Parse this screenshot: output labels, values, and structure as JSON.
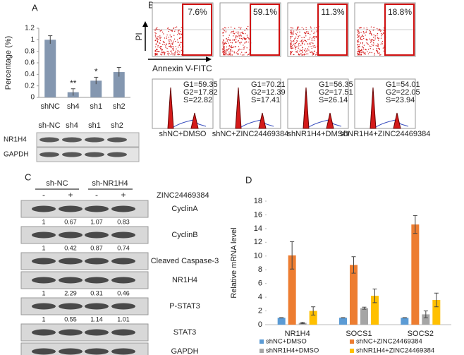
{
  "panel_labels": [
    "A",
    "B",
    "C",
    "D"
  ],
  "chart_data": [
    {
      "type": "bar",
      "ylabel": "Percentage (%)",
      "categories": [
        "shNC",
        "sh4",
        "sh1",
        "sh2"
      ],
      "values": [
        1.0,
        0.09,
        0.29,
        0.44
      ],
      "errors": [
        0.07,
        0.06,
        0.06,
        0.08
      ],
      "significance": [
        null,
        "**",
        "*",
        null
      ],
      "color": "#8497b0",
      "ylim": [
        0,
        1.2
      ],
      "yticks": [
        0,
        0.2,
        0.4,
        0.6,
        0.8,
        1,
        1.2
      ]
    },
    {
      "type": "grouped_bar",
      "ylabel": "Relative mRNA level",
      "categories": [
        "NR1H4",
        "SOCS1",
        "SOCS2"
      ],
      "series": [
        {
          "name": "shNC+DMSO",
          "color": "#5b9bd5",
          "values": [
            1,
            1,
            1
          ],
          "errors": [
            0.02,
            0.02,
            0.02
          ]
        },
        {
          "name": "shNC+ZINC24469384",
          "color": "#ed7d31",
          "values": [
            10.1,
            8.7,
            14.6
          ],
          "errors": [
            2.0,
            1.2,
            1.3
          ]
        },
        {
          "name": "shNR1H4+DMSO",
          "color": "#a5a5a5",
          "values": [
            0.25,
            2.4,
            1.5
          ],
          "errors": [
            0.1,
            0.15,
            0.5
          ]
        },
        {
          "name": "shNR1H4+ZINC24469384",
          "color": "#ffc000",
          "values": [
            2.0,
            4.2,
            3.6
          ],
          "errors": [
            0.6,
            1.0,
            1.0
          ]
        }
      ],
      "ylim": [
        0,
        18
      ],
      "yticks": [
        0,
        2,
        4,
        6,
        8,
        10,
        12,
        14,
        16,
        18
      ],
      "legend": "bottom"
    }
  ],
  "blot_a": {
    "lanes": [
      "sh-NC",
      "sh4",
      "sh1",
      "sh2"
    ],
    "rows": [
      "NR1H4",
      "GAPDH"
    ]
  },
  "flow": {
    "y_label": "PI",
    "x_label": "Annexin V-FITC",
    "percentages": [
      "7.6%",
      "59.1%",
      "11.3%",
      "18.8%"
    ],
    "cell_cycle": [
      [
        "G1=59.35",
        "G2=17.82",
        "S=22.82"
      ],
      [
        "G1=70.21",
        "G2=12.39",
        "S=17.41"
      ],
      [
        "G1=56.35",
        "G2=17.51",
        "S=26.14"
      ],
      [
        "G1=54.01",
        "G2=22.05",
        "S=23.94"
      ]
    ],
    "conditions": [
      "shNC+DMSO",
      "shNC+ZINC24469384",
      "shNR1H4+DMSO",
      "shNR1H4+ZINC24469384"
    ]
  },
  "blot_c": {
    "groups": [
      "sh-NC",
      "sh-NR1H4"
    ],
    "treatment": "ZINC24469384",
    "signs": [
      "-",
      "+",
      "-",
      "+"
    ],
    "rows": [
      {
        "label": "CyclinA",
        "quant": [
          1,
          0.67,
          1.07,
          0.83
        ]
      },
      {
        "label": "CyclinB",
        "quant": [
          1,
          0.42,
          0.87,
          0.74
        ]
      },
      {
        "label": "Cleaved Caspase-3"
      },
      {
        "label": "NR1H4",
        "quant": [
          1,
          2.29,
          0.31,
          0.46
        ]
      },
      {
        "label": "P-STAT3",
        "quant": [
          1,
          0.55,
          1.14,
          1.01
        ]
      },
      {
        "label": "STAT3"
      },
      {
        "label": "GAPDH"
      }
    ]
  }
}
